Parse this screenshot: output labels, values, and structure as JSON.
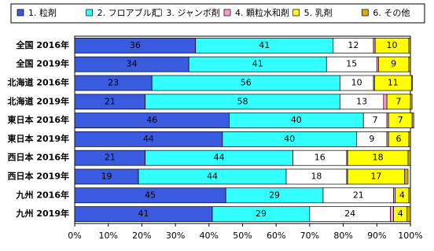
{
  "chart_data": {
    "type": "stacked-bar-horizontal",
    "categories": [
      "全国 2016年",
      "全国 2019年",
      "北海道 2016年",
      "北海道 2019年",
      "東日本 2016年",
      "東日本 2019年",
      "西日本 2016年",
      "西日本 2019年",
      "九州 2016年",
      "九州 2019年"
    ],
    "series": [
      {
        "name": "1. 粒剤",
        "color": "#3a5ae0",
        "values": [
          36,
          34,
          23,
          21,
          46,
          44,
          21,
          19,
          45,
          41
        ]
      },
      {
        "name": "2. フロアブル剤",
        "color": "#33ffff",
        "values": [
          41,
          41,
          56,
          58,
          40,
          40,
          44,
          44,
          29,
          29
        ]
      },
      {
        "name": "3. ジャンボ剤",
        "color": "#ffffff",
        "values": [
          12,
          15,
          10,
          13,
          7,
          9,
          16,
          18,
          21,
          24
        ]
      },
      {
        "name": "4. 顆粒水和剤",
        "color": "#ff99cc",
        "values": [
          0.5,
          0.5,
          0.3,
          1,
          0.5,
          0.5,
          0.3,
          0.3,
          0.5,
          1
        ]
      },
      {
        "name": "5. 乳剤",
        "color": "#ffff00",
        "values": [
          10,
          9,
          11,
          7,
          7,
          6,
          18,
          17,
          4,
          4
        ]
      },
      {
        "name": "6. その他",
        "color": "#d4b000",
        "values": [
          0.5,
          0.5,
          0.3,
          0.5,
          0.5,
          0.5,
          0.7,
          1,
          0.5,
          1
        ]
      }
    ],
    "xlim": [
      0,
      100
    ],
    "xticks": [
      {
        "value": 0,
        "label": "0%"
      },
      {
        "value": 10,
        "label": "10%"
      },
      {
        "value": 20,
        "label": "20%"
      },
      {
        "value": 30,
        "label": "30%"
      },
      {
        "value": 40,
        "label": "40%"
      },
      {
        "value": 50,
        "label": "50%"
      },
      {
        "value": 60,
        "label": "60%"
      },
      {
        "value": 70,
        "label": "70%"
      },
      {
        "value": 80,
        "label": "80%"
      },
      {
        "value": 90,
        "label": "90%"
      },
      {
        "value": 100,
        "label": "100%"
      }
    ],
    "grid": false,
    "legend": "top"
  }
}
